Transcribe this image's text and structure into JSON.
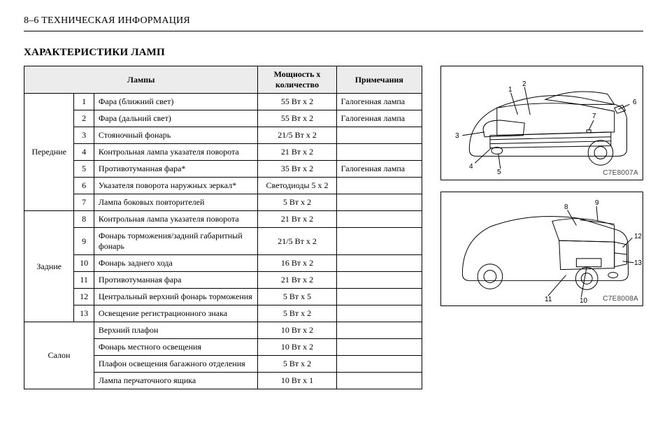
{
  "header": "8–6   ТЕХНИЧЕСКАЯ ИНФОРМАЦИЯ",
  "section_title": "ХАРАКТЕРИСТИКИ ЛАМП",
  "table": {
    "columns": [
      "Лампы",
      "Мощность х количество",
      "Примечания"
    ],
    "groups": [
      {
        "label": "Передние",
        "rows": [
          {
            "n": "1",
            "name": "Фара (ближний свет)",
            "power": "55 Вт x 2",
            "note": "Галогенная лампа"
          },
          {
            "n": "2",
            "name": "Фара (дальний свет)",
            "power": "55 Вт x 2",
            "note": "Галогенная лампа"
          },
          {
            "n": "3",
            "name": "Стояночный фонарь",
            "power": "21/5 Вт x 2",
            "note": ""
          },
          {
            "n": "4",
            "name": "Контрольная лампа указателя поворота",
            "power": "21 Вт x 2",
            "note": ""
          },
          {
            "n": "5",
            "name": "Противотуманная фара*",
            "power": "35 Вт x 2",
            "note": "Галогенная лампа"
          },
          {
            "n": "6",
            "name": "Указателя поворота наружных зеркал*",
            "power": "Светодиоды 5 x 2",
            "note": ""
          },
          {
            "n": "7",
            "name": "Лампа боковых повторителей",
            "power": "5 Вт x 2",
            "note": ""
          }
        ]
      },
      {
        "label": "Задние",
        "rows": [
          {
            "n": "8",
            "name": "Контрольная лампа указателя поворота",
            "power": "21 Вт x 2",
            "note": ""
          },
          {
            "n": "9",
            "name": "Фонарь торможения/задний габаритный фонарь",
            "power": "21/5 Вт x 2",
            "note": ""
          },
          {
            "n": "10",
            "name": "Фонарь заднего хода",
            "power": "16 Вт x 2",
            "note": ""
          },
          {
            "n": "11",
            "name": "Противотуманная фара",
            "power": "21 Вт x 2",
            "note": ""
          },
          {
            "n": "12",
            "name": "Центральный верхний фонарь торможения",
            "power": "5 Вт x 5",
            "note": ""
          },
          {
            "n": "13",
            "name": "Освещение регистрационного знака",
            "power": "5 Вт x 2",
            "note": ""
          }
        ]
      },
      {
        "label": "Салон",
        "rows": [
          {
            "n": "",
            "name": "Верхний плафон",
            "power": "10 Вт x 2",
            "note": ""
          },
          {
            "n": "",
            "name": "Фонарь местного освещения",
            "power": "10 Вт x 2",
            "note": ""
          },
          {
            "n": "",
            "name": "Плафон освещения багажного отделения",
            "power": "5 Вт x 2",
            "note": ""
          },
          {
            "n": "",
            "name": "Лампа перчаточного ящика",
            "power": "10 Вт x 1",
            "note": ""
          }
        ]
      }
    ]
  },
  "figures": {
    "front": {
      "label": "C7E8007A",
      "callouts": [
        "1",
        "2",
        "3",
        "4",
        "5",
        "6",
        "7"
      ]
    },
    "rear": {
      "label": "C7E8008A",
      "callouts": [
        "8",
        "9",
        "10",
        "11",
        "12",
        "13"
      ]
    }
  }
}
